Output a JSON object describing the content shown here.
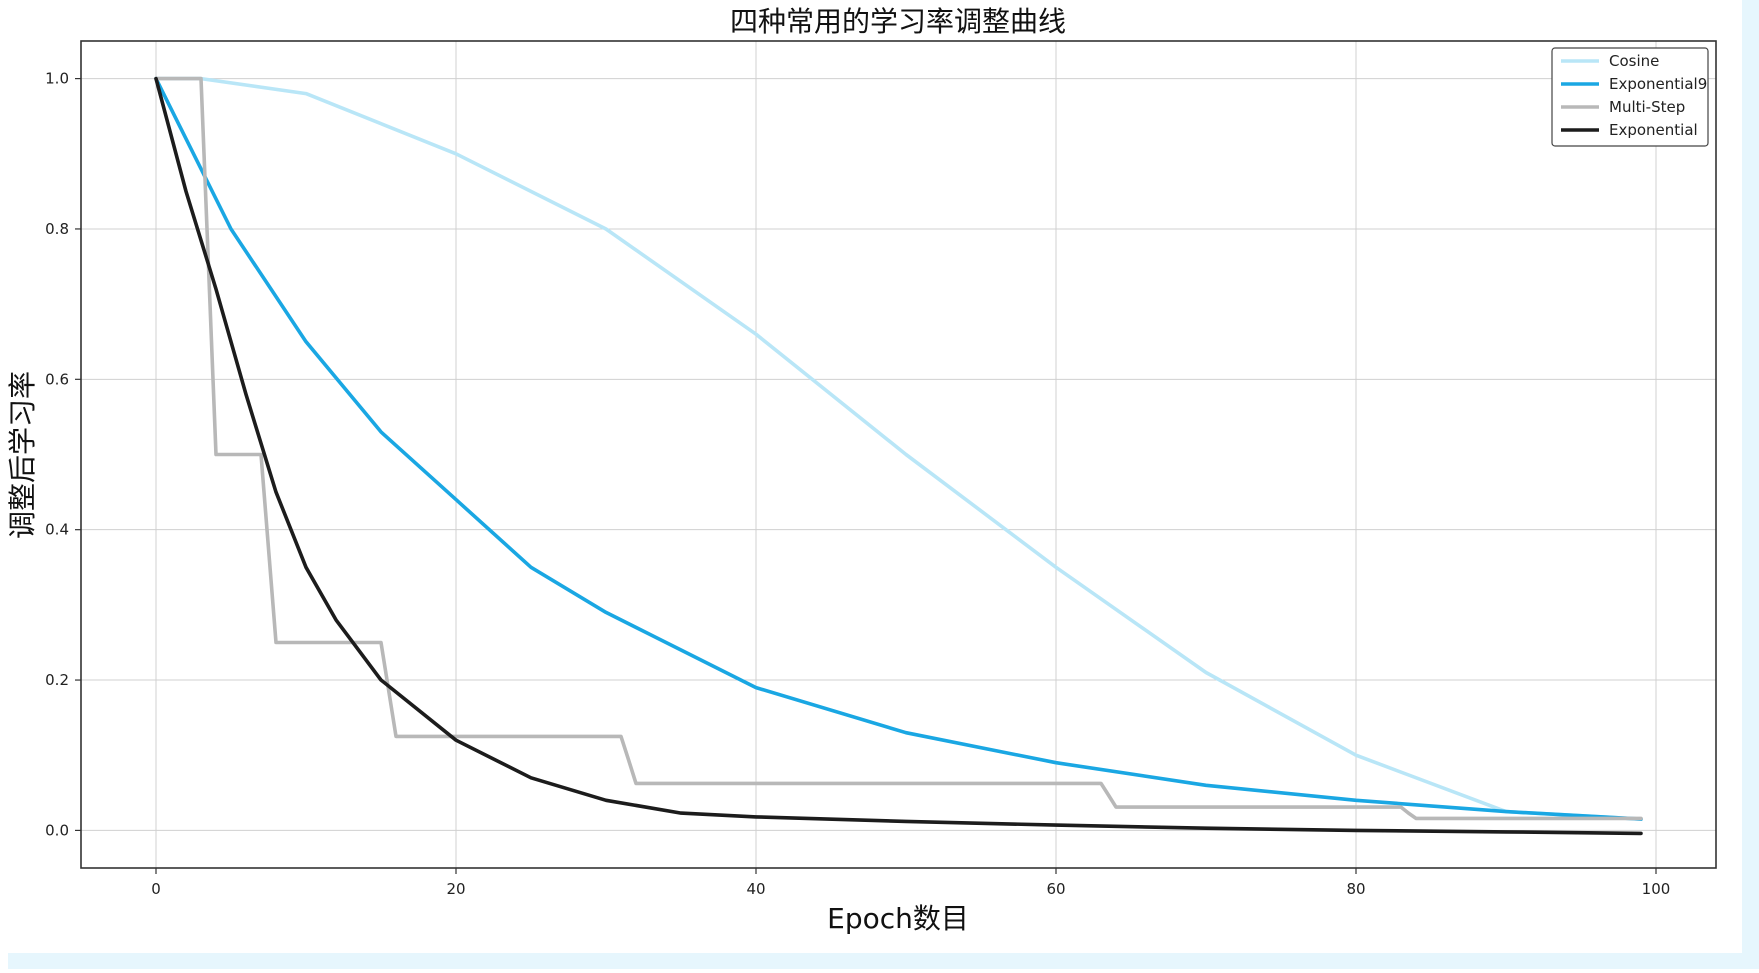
{
  "chart_data": {
    "type": "line",
    "title": "四种常用的学习率调整曲线",
    "xlabel": "Epoch数目",
    "ylabel": "调整后学习率",
    "xlim": [
      -5,
      104
    ],
    "ylim": [
      -0.05,
      1.05
    ],
    "xticks": [
      0,
      20,
      40,
      60,
      80,
      100
    ],
    "yticks": [
      0.0,
      0.2,
      0.4,
      0.6,
      0.8,
      1.0
    ],
    "xtick_labels": [
      "0",
      "20",
      "40",
      "60",
      "80",
      "100"
    ],
    "ytick_labels": [
      "0.0",
      "0.2",
      "0.4",
      "0.6",
      "0.8",
      "1.0"
    ],
    "grid": true,
    "legend_position": "top-right",
    "series": [
      {
        "name": "Cosine",
        "color": "#b9e6f7",
        "x": [
          0,
          3,
          10,
          20,
          30,
          40,
          50,
          60,
          70,
          80,
          90,
          99
        ],
        "y": [
          1.0,
          1.0,
          0.98,
          0.9,
          0.8,
          0.66,
          0.5,
          0.35,
          0.21,
          0.1,
          0.025,
          0.015
        ]
      },
      {
        "name": "Exponential9",
        "color": "#1aa7e3",
        "x": [
          0,
          5,
          10,
          15,
          20,
          25,
          30,
          35,
          40,
          50,
          60,
          70,
          80,
          90,
          99
        ],
        "y": [
          1.0,
          0.8,
          0.65,
          0.53,
          0.44,
          0.35,
          0.29,
          0.24,
          0.19,
          0.13,
          0.09,
          0.06,
          0.04,
          0.025,
          0.015
        ]
      },
      {
        "name": "Multi-Step",
        "color": "#b8b8b8",
        "x": [
          0,
          3,
          3.5,
          4,
          7,
          7.5,
          8,
          15,
          15.5,
          16,
          31,
          31.5,
          32,
          63,
          63.5,
          64,
          83,
          83.5,
          84,
          99
        ],
        "y": [
          1.0,
          1.0,
          0.75,
          0.5,
          0.5,
          0.375,
          0.25,
          0.25,
          0.1875,
          0.125,
          0.125,
          0.094,
          0.0625,
          0.0625,
          0.047,
          0.031,
          0.031,
          0.023,
          0.016,
          0.016
        ]
      },
      {
        "name": "Exponential",
        "color": "#1c1c1c",
        "x": [
          0,
          2,
          4,
          6,
          8,
          10,
          12,
          15,
          20,
          25,
          30,
          35,
          40,
          50,
          60,
          70,
          80,
          90,
          99
        ],
        "y": [
          1.0,
          0.85,
          0.72,
          0.58,
          0.45,
          0.35,
          0.28,
          0.2,
          0.12,
          0.07,
          0.04,
          0.023,
          0.018,
          0.012,
          0.007,
          0.003,
          0.0,
          -0.002,
          -0.004
        ]
      }
    ]
  }
}
